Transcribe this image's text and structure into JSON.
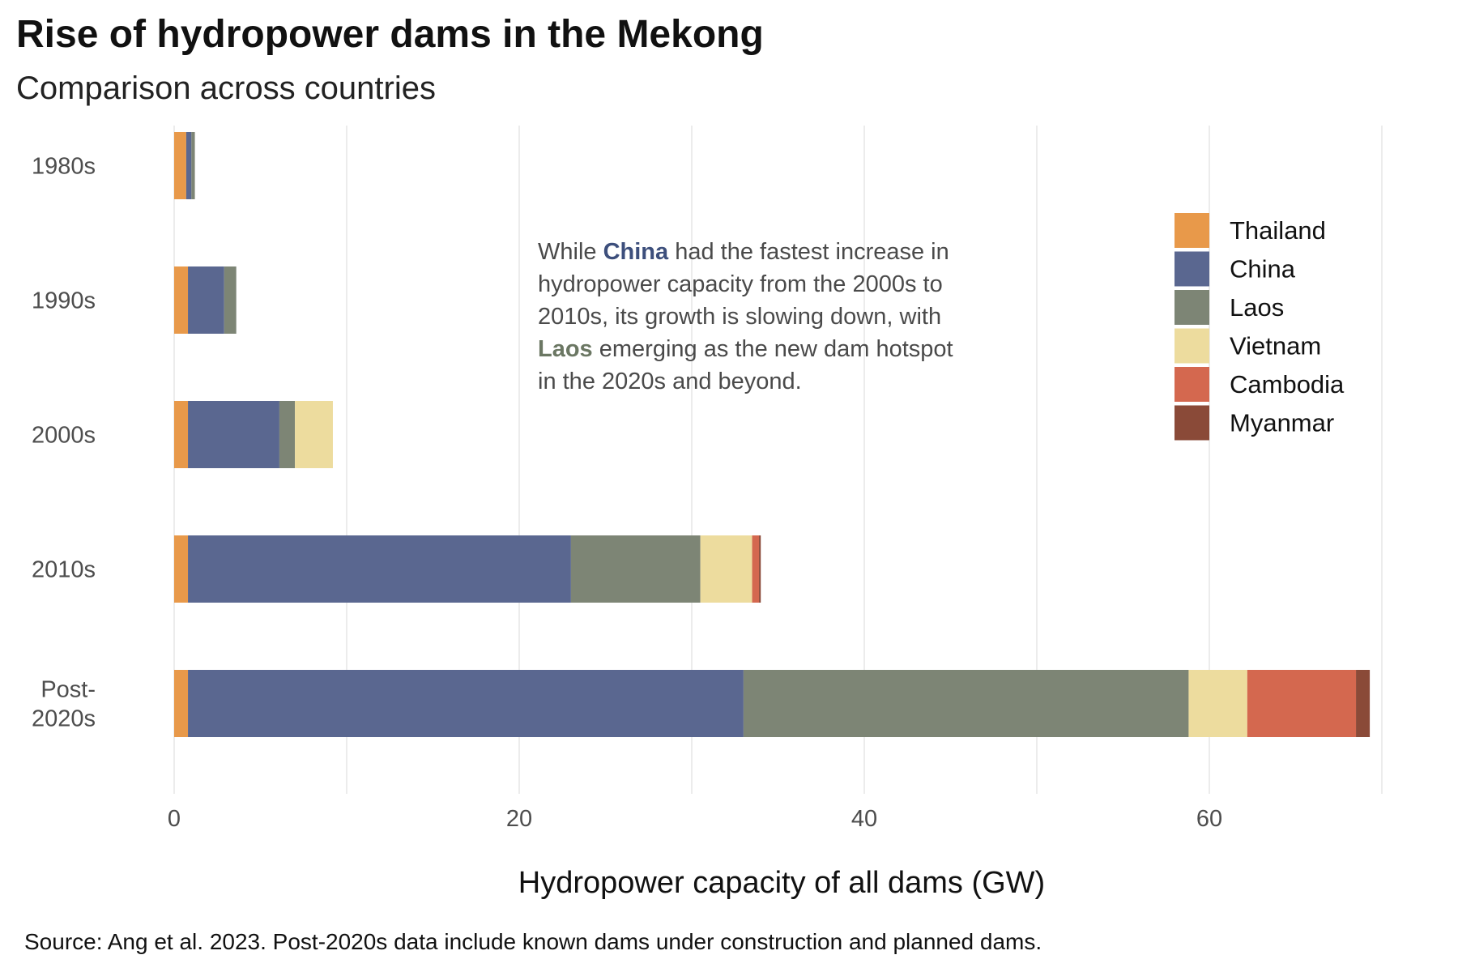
{
  "chart_data": {
    "type": "bar",
    "orientation": "horizontal",
    "stacked": true,
    "title": "Rise of hydropower dams in the Mekong",
    "subtitle": "Comparison across countries",
    "xlabel": "Hydropower capacity of all dams (GW)",
    "ylabel": "",
    "xlim": [
      0,
      70
    ],
    "xticks": [
      "0",
      "20",
      "40",
      "60"
    ],
    "xtick_values": [
      0,
      20,
      40,
      60
    ],
    "categories": [
      "1980s",
      "1990s",
      "2000s",
      "2010s",
      "Post-\n2020s"
    ],
    "grid": true,
    "legend_position": "right",
    "series": [
      {
        "name": "Thailand",
        "color": "#e8994a",
        "values": [
          0.7,
          0.8,
          0.8,
          0.8,
          0.8
        ]
      },
      {
        "name": "China",
        "color": "#5a6790",
        "values": [
          0.3,
          2.1,
          5.3,
          22.2,
          32.2
        ]
      },
      {
        "name": "Laos",
        "color": "#7d8575",
        "values": [
          0.2,
          0.7,
          0.9,
          7.5,
          25.8
        ]
      },
      {
        "name": "Vietnam",
        "color": "#eddc9e",
        "values": [
          0,
          0,
          2.2,
          3.0,
          3.4
        ]
      },
      {
        "name": "Cambodia",
        "color": "#d4684f",
        "values": [
          0,
          0,
          0,
          0.4,
          6.3
        ]
      },
      {
        "name": "Myanmar",
        "color": "#8a4a38",
        "values": [
          0,
          0,
          0,
          0.1,
          0.8
        ]
      }
    ],
    "annotation": {
      "lines": [
        [
          {
            "text": "While "
          },
          {
            "text": "China",
            "style": "china"
          },
          {
            "text": " had the fastest increase in"
          }
        ],
        [
          {
            "text": "hydropower capacity from the 2000s to"
          }
        ],
        [
          {
            "text": "2010s, its growth is slowing down, with"
          }
        ],
        [
          {
            "text": "Laos",
            "style": "laos"
          },
          {
            "text": " emerging as the new dam hotspot"
          }
        ],
        [
          {
            "text": "in the 2020s and beyond."
          }
        ]
      ]
    },
    "caption": "Source: Ang et al. 2023. Post-2020s data include known dams under construction and planned dams."
  }
}
